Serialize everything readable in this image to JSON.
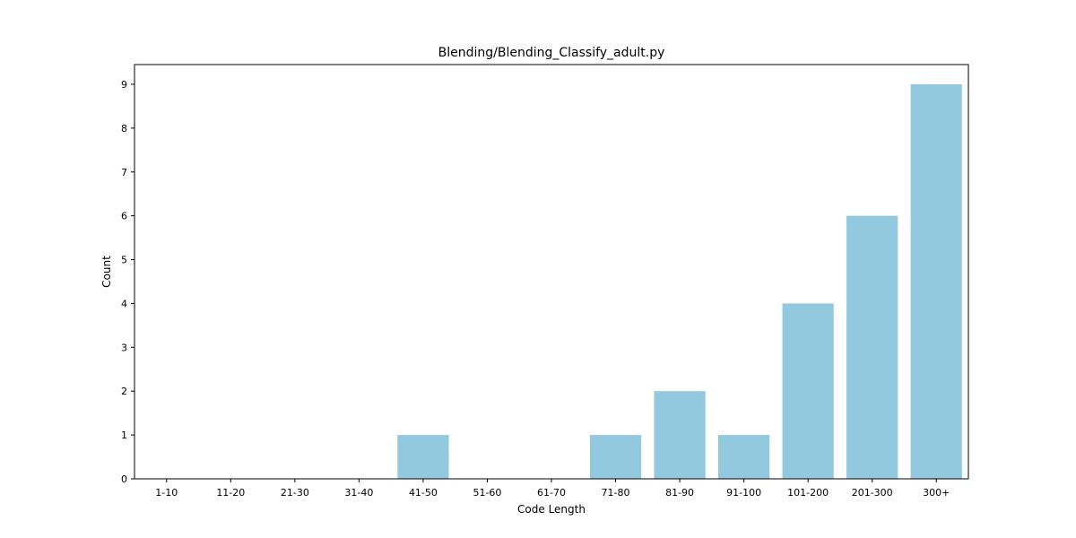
{
  "chart_data": {
    "type": "bar",
    "title": "Blending/Blending_Classify_adult.py",
    "xlabel": "Code Length",
    "ylabel": "Count",
    "categories": [
      "1-10",
      "11-20",
      "21-30",
      "31-40",
      "41-50",
      "51-60",
      "61-70",
      "71-80",
      "81-90",
      "91-100",
      "101-200",
      "201-300",
      "300+"
    ],
    "values": [
      0,
      0,
      0,
      0,
      1,
      0,
      0,
      1,
      2,
      1,
      4,
      6,
      9
    ],
    "ylim": [
      0,
      9.45
    ],
    "yticks": [
      0,
      1,
      2,
      3,
      4,
      5,
      6,
      7,
      8,
      9
    ],
    "bar_color": "#92c9df",
    "grid": false,
    "legend": "none"
  }
}
